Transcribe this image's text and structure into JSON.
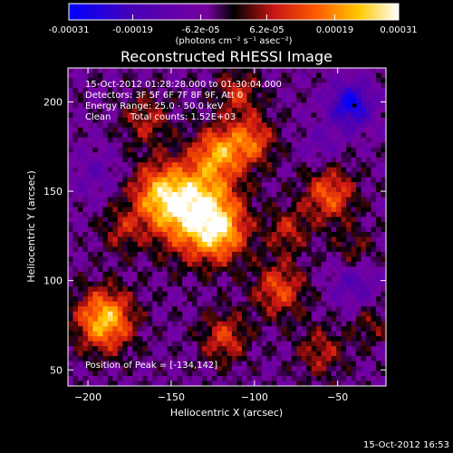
{
  "chart_data": {
    "type": "heatmap",
    "title": "Reconstructed RHESSI Image",
    "xlabel": "Heliocentric X (arcsec)",
    "ylabel": "Heliocentric Y (arcsec)",
    "xlim": [
      -212,
      -21
    ],
    "ylim": [
      41,
      219
    ],
    "x_ticks": [
      -200,
      -150,
      -100,
      -50
    ],
    "y_ticks": [
      50,
      100,
      150,
      200
    ],
    "colorbar": {
      "min": -0.00031,
      "max": 0.00031,
      "tick_values": [
        -0.00031,
        -0.00019,
        -6.2e-05,
        6.2e-05,
        0.00019,
        0.00031
      ],
      "tick_labels": [
        "-0.00031",
        "-0.00019",
        "-6.2e-05",
        "6.2e-05",
        "0.00019",
        "0.00031"
      ],
      "unit_label": "(photons cm⁻² s⁻¹ asec⁻²)"
    },
    "annotations": [
      "15-Oct-2012 01:28:28.000 to 01:30:04.000",
      "Detectors: 3F 5F 6F 7F 8F 9F, Att 0",
      "Energy Range: 25.0 - 50.0 keV",
      "Clean",
      "Total counts: 1.52E+03"
    ],
    "peak_label": "Position of Peak = [-134,142]",
    "timestamp": "15-Oct-2012 16:53",
    "marker": {
      "x": -40,
      "y": 198
    },
    "sources": [
      {
        "x": -135,
        "y": 140,
        "amp": 1.0,
        "sigma": 17
      },
      {
        "x": -158,
        "y": 148,
        "amp": 0.55,
        "sigma": 12
      },
      {
        "x": -122,
        "y": 172,
        "amp": 0.6,
        "sigma": 10
      },
      {
        "x": -102,
        "y": 178,
        "amp": 0.55,
        "sigma": 10
      },
      {
        "x": -120,
        "y": 126,
        "amp": 0.5,
        "sigma": 11
      },
      {
        "x": -165,
        "y": 190,
        "amp": 0.35,
        "sigma": 10
      },
      {
        "x": -110,
        "y": 205,
        "amp": 0.4,
        "sigma": 9
      },
      {
        "x": -190,
        "y": 78,
        "amp": 0.85,
        "sigma": 12
      },
      {
        "x": -118,
        "y": 68,
        "amp": 0.45,
        "sigma": 10
      },
      {
        "x": -85,
        "y": 95,
        "amp": 0.5,
        "sigma": 11
      },
      {
        "x": -55,
        "y": 148,
        "amp": 0.55,
        "sigma": 11
      },
      {
        "x": -40,
        "y": 115,
        "amp": 0.3,
        "sigma": 9
      },
      {
        "x": -60,
        "y": 60,
        "amp": 0.35,
        "sigma": 10
      },
      {
        "x": -30,
        "y": 75,
        "amp": 0.25,
        "sigma": 8
      },
      {
        "x": -180,
        "y": 128,
        "amp": 0.3,
        "sigma": 9
      },
      {
        "x": -80,
        "y": 128,
        "amp": 0.35,
        "sigma": 9
      }
    ],
    "negative_sources": [
      {
        "x": -42,
        "y": 198,
        "amp": 0.7,
        "sigma": 9
      },
      {
        "x": -40,
        "y": 100,
        "amp": 0.35,
        "sigma": 10
      },
      {
        "x": -195,
        "y": 160,
        "amp": 0.2,
        "sigma": 10
      },
      {
        "x": -60,
        "y": 175,
        "amp": 0.2,
        "sigma": 8
      }
    ]
  }
}
